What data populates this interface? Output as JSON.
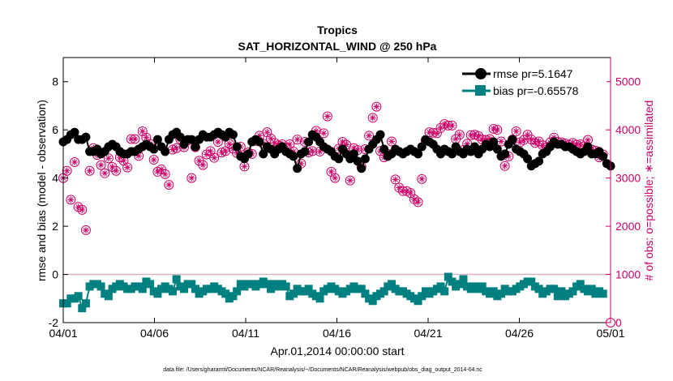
{
  "chart_data": {
    "type": "line",
    "title": "Tropics",
    "subtitle": "SAT_HORIZONTAL_WIND @ 250 hPa",
    "xlabel": "Apr.01,2014 00:00:00 start",
    "ylabel_left": "rmse and bias (model - observation)",
    "ylabel_right": "# of obs: o=possible; ∗=assimilated",
    "footnote": "data file: /Users/gharamti/Documents/NCAR/Reanalysis/~/Documents/NCAR/Reanalysis/webpub/obs_diag_output_2014-04.nc",
    "x_ticks": [
      {
        "day": 0,
        "label": "04/01"
      },
      {
        "day": 5,
        "label": "04/06"
      },
      {
        "day": 10,
        "label": "04/11"
      },
      {
        "day": 15,
        "label": "04/16"
      },
      {
        "day": 20,
        "label": "04/21"
      },
      {
        "day": 25,
        "label": "04/26"
      },
      {
        "day": 30,
        "label": "05/01"
      }
    ],
    "xlim": [
      0,
      30
    ],
    "ylim_left": [
      -2,
      9
    ],
    "yticks_left": [
      -2,
      0,
      2,
      4,
      6,
      8
    ],
    "ylim_right": [
      0,
      5500
    ],
    "yticks_right": [
      0,
      1000,
      2000,
      3000,
      4000,
      5000
    ],
    "zero_line": 0,
    "colors": {
      "rmse": "#000000",
      "bias": "#008080",
      "obs": "#cc0066",
      "axes": "#000000"
    },
    "series": [
      {
        "name": "rmse",
        "legend": "rmse pr=5.1647",
        "marker": "circle",
        "axis": "left",
        "values": [
          5.5,
          5.6,
          5.8,
          5.9,
          5.6,
          5.6,
          5.7,
          5.1,
          5.1,
          5.2,
          5.0,
          5.1,
          5.3,
          5.4,
          5.3,
          5.1,
          5.0,
          5.0,
          5.1,
          5.1,
          5.2,
          5.3,
          5.4,
          5.3,
          5.2,
          5.6,
          5.3,
          5.1,
          5.6,
          5.8,
          5.9,
          5.7,
          5.4,
          5.6,
          5.6,
          5.3,
          5.6,
          5.8,
          5.7,
          5.7,
          5.8,
          5.9,
          5.8,
          5.7,
          5.9,
          5.8,
          5.3,
          4.9,
          4.8,
          5.0,
          5.5,
          5.6,
          5.5,
          5.0,
          5.3,
          5.2,
          5.0,
          5.2,
          5.3,
          5.1,
          5.0,
          4.9,
          4.4,
          5.0,
          5.1,
          5.5,
          5.8,
          5.7,
          5.5,
          5.3,
          5.2,
          5.1,
          4.9,
          4.8,
          5.2,
          5.0,
          4.8,
          5.0,
          4.7,
          4.4,
          4.8,
          5.2,
          5.4,
          5.6,
          5.8,
          5.2,
          4.9,
          5.0,
          5.2,
          5.1,
          5.0,
          5.1,
          5.2,
          5.1,
          5.0,
          5.3,
          5.6,
          5.5,
          5.4,
          5.2,
          5.0,
          5.2,
          5.1,
          5.0,
          5.3,
          5.1,
          5.0,
          5.2,
          5.1,
          5.3,
          5.0,
          5.2,
          5.4,
          5.3,
          5.5,
          5.2,
          4.9,
          5.0,
          5.4,
          5.6,
          5.2,
          5.1,
          5.0,
          4.8,
          4.5,
          4.6,
          4.7,
          5.0,
          5.1,
          5.3,
          5.5,
          5.4,
          5.4,
          5.3,
          5.3,
          5.2,
          5.1,
          5.0,
          5.1,
          5.3,
          5.0,
          5.0,
          5.1,
          4.9,
          4.6,
          4.5
        ],
        "assimilated": [
          3000,
          3150,
          2550,
          3330,
          2400,
          2340,
          1920,
          3150,
          3620,
          3480,
          3270,
          3100,
          3410,
          3230,
          3150,
          3430,
          3360,
          3220,
          3810,
          3810,
          3460,
          3970,
          3840,
          3710,
          3380,
          3130,
          3180,
          3080,
          2860,
          3590,
          3620,
          3810,
          3640,
          3780,
          3000,
          3640,
          3360,
          3270,
          3490,
          3560,
          3420,
          3750,
          3530,
          3560,
          3710,
          3610,
          3520,
          3650,
          3240,
          3530,
          3500,
          3770,
          3880,
          3710,
          3950,
          3820,
          3730,
          3680,
          3700,
          3630,
          3700,
          3550,
          3800,
          3300,
          3750,
          3530,
          3560,
          3980,
          3550,
          3930,
          4280,
          3130,
          3000,
          3610,
          3750,
          3690,
          2950,
          3620,
          3580,
          3230,
          3600,
          3880,
          4250,
          4480,
          3560,
          3430,
          3500,
          3760,
          2970,
          2800,
          2730,
          2730,
          2690,
          2560,
          2500,
          2980,
          3780,
          3950,
          3940,
          3930,
          4040,
          4120,
          4090,
          4090,
          3810,
          3900,
          3580,
          3710,
          3890,
          3900,
          3870,
          3800,
          3790,
          3810,
          4020,
          4000,
          3760,
          3250,
          3450,
          3800,
          3970,
          3740,
          3790,
          3900,
          3800,
          3730,
          3760,
          3680,
          3640,
          3740,
          3840,
          3750,
          3740,
          3720,
          3690,
          3730,
          3690,
          3700,
          3660,
          3790,
          3590,
          3570,
          3430,
          3490
        ]
      },
      {
        "name": "bias",
        "legend": "bias pr=-0.65578",
        "marker": "square",
        "axis": "left",
        "values": [
          -1.2,
          -1.2,
          -1.0,
          -1.0,
          -0.9,
          -1.4,
          -1.2,
          -0.5,
          -0.4,
          -0.4,
          -0.5,
          -0.8,
          -0.9,
          -0.6,
          -0.5,
          -0.4,
          -0.5,
          -0.6,
          -0.6,
          -0.5,
          -0.5,
          -0.6,
          -0.3,
          -0.4,
          -0.7,
          -0.8,
          -0.6,
          -0.5,
          -0.6,
          -0.7,
          -0.2,
          -0.5,
          -0.6,
          -0.4,
          -0.4,
          -0.6,
          -0.8,
          -0.7,
          -0.6,
          -0.6,
          -0.5,
          -0.6,
          -0.7,
          -0.8,
          -1.0,
          -0.9,
          -0.7,
          -0.4,
          -0.5,
          -0.4,
          -0.4,
          -0.5,
          -0.4,
          -0.3,
          -0.4,
          -0.6,
          -0.4,
          -0.5,
          -0.4,
          -0.5,
          -0.9,
          -0.8,
          -0.6,
          -0.7,
          -0.7,
          -0.6,
          -0.8,
          -0.9,
          -1.0,
          -0.7,
          -0.6,
          -0.5,
          -0.6,
          -0.7,
          -0.8,
          -0.7,
          -0.6,
          -0.5,
          -0.6,
          -0.6,
          -0.8,
          -1.0,
          -1.1,
          -0.9,
          -0.8,
          -0.7,
          -0.5,
          -0.4,
          -0.6,
          -0.7,
          -0.7,
          -0.8,
          -0.9,
          -1.0,
          -1.1,
          -0.9,
          -0.7,
          -0.8,
          -0.7,
          -0.6,
          -0.5,
          -0.7,
          -0.1,
          -0.3,
          -0.5,
          -0.4,
          -0.2,
          -0.5,
          -0.6,
          -0.5,
          -0.6,
          -0.5,
          -0.7,
          -0.8,
          -0.7,
          -0.9,
          -0.8,
          -0.6,
          -0.7,
          -0.7,
          -0.6,
          -0.5,
          -0.4,
          -0.3,
          -0.3,
          -0.5,
          -0.6,
          -0.8,
          -0.7,
          -0.6,
          -0.6,
          -0.9,
          -0.7,
          -0.9,
          -0.8,
          -0.7,
          -0.5,
          -0.4,
          -0.6,
          -0.7,
          -0.6,
          -0.8,
          -0.7,
          -0.8
        ]
      }
    ],
    "possible_last": 0
  }
}
